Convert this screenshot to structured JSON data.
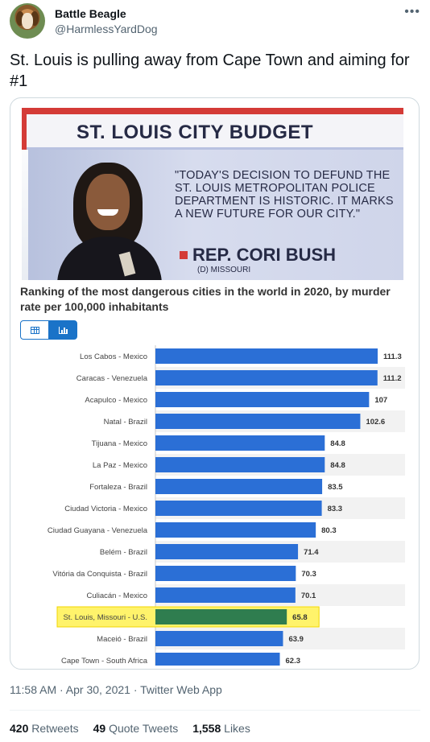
{
  "author": {
    "display_name": "Battle Beagle",
    "handle": "@HarmlessYardDog"
  },
  "tweet": {
    "text": "St. Louis is pulling away from Cape Town and aiming for #1"
  },
  "news_image": {
    "banner": "ST. LOUIS CITY BUDGET",
    "quote": "\"TODAY'S DECISION TO DEFUND THE ST. LOUIS METROPOLITAN POLICE DEPARTMENT IS HISTORIC. IT MARKS A NEW FUTURE FOR OUR CITY.\"",
    "rep_name": "REP. CORI BUSH",
    "rep_party": "(D) MISSOURI"
  },
  "chart_title": "Ranking of the most dangerous cities in the world in 2020, by murder rate per 100,000 inhabitants",
  "chart_data": {
    "type": "bar",
    "orientation": "horizontal",
    "categories": [
      "Los Cabos - Mexico",
      "Caracas - Venezuela",
      "Acapulco - Mexico",
      "Natal - Brazil",
      "Tijuana - Mexico",
      "La Paz - Mexico",
      "Fortaleza - Brazil",
      "Ciudad Victoria - Mexico",
      "Ciudad Guayana - Venezuela",
      "Belém - Brazil",
      "Vitória da Conquista - Brazil",
      "Culiacán - Mexico",
      "St. Louis, Missouri - U.S.",
      "Maceió - Brazil",
      "Cape Town - South Africa"
    ],
    "values": [
      111.3,
      111.2,
      107,
      102.6,
      84.8,
      84.8,
      83.5,
      83.3,
      80.3,
      71.4,
      70.3,
      70.1,
      65.8,
      63.9,
      62.3
    ],
    "value_labels": [
      "111.3",
      "111.2",
      "107",
      "102.6",
      "84.8",
      "84.8",
      "83.5",
      "83.3",
      "80.3",
      "71.4",
      "70.3",
      "70.1",
      "65.8",
      "63.9",
      "62.3"
    ],
    "highlight_index": 12,
    "xlim": [
      0,
      125
    ],
    "colors": {
      "bar": "#2b6fd6",
      "highlight_bar": "#2f7d4f",
      "highlight_box": "#fff36b",
      "stripe": "#f2f2f2"
    }
  },
  "timestamp": "11:58 AM · Apr 30, 2021 · Twitter Web App",
  "stats": {
    "retweets_count": "420",
    "retweets_label": "Retweets",
    "quotes_count": "49",
    "quotes_label": "Quote Tweets",
    "likes_count": "1,558",
    "likes_label": "Likes"
  }
}
